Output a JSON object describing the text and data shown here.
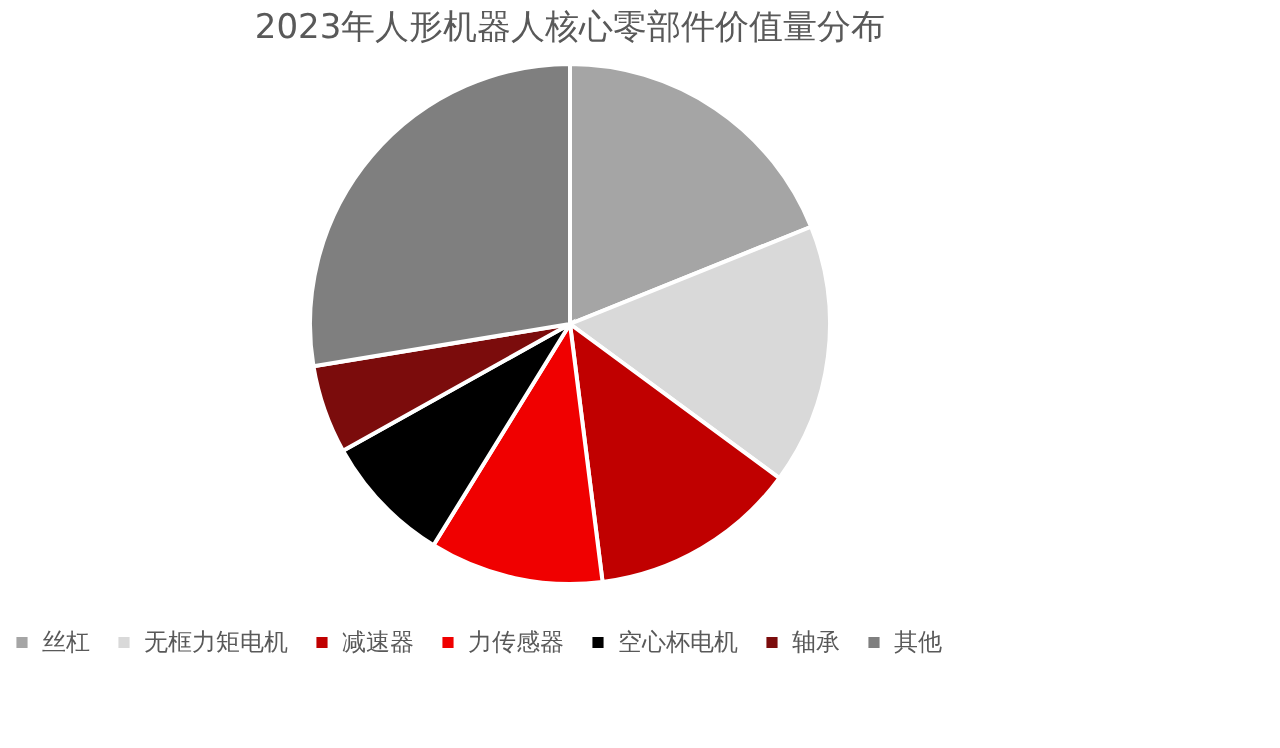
{
  "chart_data": {
    "type": "pie",
    "title": "2023年人形机器人核心零部件价值量分布",
    "categories": [
      "丝杠",
      "无框力矩电机",
      "减速器",
      "力传感器",
      "空心杯电机",
      "轴承",
      "其他"
    ],
    "values": [
      18.9,
      16.2,
      12.9,
      10.8,
      8.1,
      5.5,
      27.6
    ],
    "colors": [
      "#a5a5a5",
      "#d9d9d9",
      "#c00000",
      "#f00000",
      "#000000",
      "#7b0c0c",
      "#7f7f7f"
    ],
    "legend": "bottom"
  }
}
